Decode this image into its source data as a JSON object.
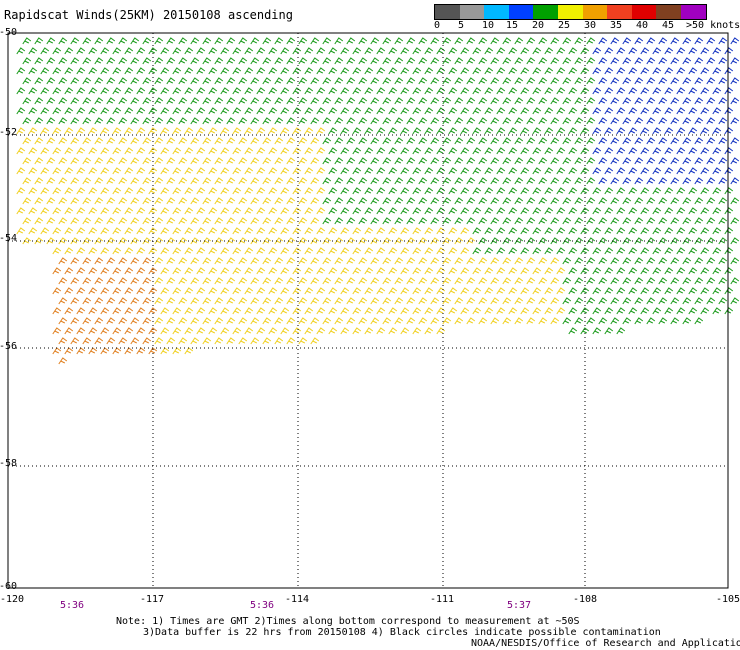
{
  "title": "Rapidscat Winds(25KM) 20150108 ascending",
  "legend": {
    "labels": [
      "0",
      "5",
      "10",
      "15",
      "20",
      "25",
      "30",
      "35",
      "40",
      "45",
      ">50 knots"
    ],
    "colors": [
      "#555555",
      "#999999",
      "#00b8ff",
      "#0040ff",
      "#00a000",
      "#f0f000",
      "#f0a000",
      "#f04020",
      "#e00000",
      "#804020",
      "#a000c0",
      "#600090"
    ]
  },
  "axes": {
    "lat_labels": [
      "-50",
      "-52",
      "-54",
      "-56",
      "-58",
      "-60"
    ],
    "lon_labels": [
      "-120",
      "-117",
      "-114",
      "-111",
      "-108",
      "-105"
    ]
  },
  "times": [
    "5:36",
    "5:36",
    "5:37"
  ],
  "notes": {
    "line1": "Note: 1) Times are GMT 2)Times along bottom correspond to measurement at ~50S",
    "line2": "3)Data buffer is 22 hrs from 20150108 4) Black circles indicate possible contamination",
    "line3": "NOAA/NESDIS/Office of Research and Applications"
  },
  "map_colors": {
    "green": "#1a9a1a",
    "dark_green": "#006000",
    "blue": "#1030c0",
    "yellow": "#f0d020",
    "orange": "#e08020",
    "black": "#000000"
  }
}
